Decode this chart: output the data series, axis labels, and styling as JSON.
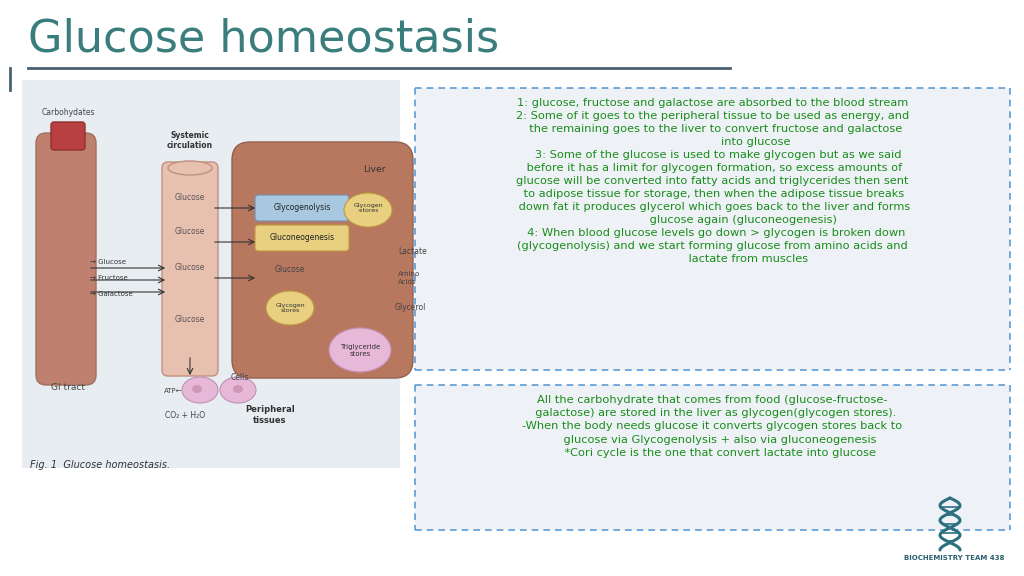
{
  "title": "Glucose homeostasis",
  "title_color": "#3a7d7d",
  "title_fontsize": 32,
  "divider_color": "#4a6070",
  "bg_color": "#ffffff",
  "box_text_color": "#1a8c1a",
  "box_border_color": "#5b9bd5",
  "box_bg_color": "#eef2f7",
  "logo_text": "BIOCHEMISTRY TEAM 438",
  "logo_color": "#2c5f6e",
  "fig_caption": "Fig. 1  Glucose homeostasis.",
  "box1_lines": [
    "1: glucose, fructose and galactose are absorbed to the blood stream",
    "2: Some of it goes to the peripheral tissue to be used as energy, and",
    "  the remaining goes to the liver to convert fructose and galactose",
    "                        into glucose",
    "   3: Some of the glucose is used to make glycogen but as we said",
    " before it has a limit for glycogen formation, so excess amounts of",
    "glucose will be converted into fatty acids and triglycerides then sent",
    " to adipose tissue for storage, then when the adipose tissue breaks",
    " down fat it produces glycerol which goes back to the liver and forms",
    "                 glucose again (gluconeogenesis)",
    "  4: When blood glucose levels go down > glycogen is broken down",
    "(glycogenolysis) and we start forming glucose from amino acids and",
    "                    lactate from muscles"
  ],
  "box2_lines": [
    "All the carbohydrate that comes from food (glucose-fructose-",
    "  galactose) are stored in the liver as glycogen(glycogen stores).",
    "-When the body needs glucose it converts glycogen stores back to",
    "    glucose via Glycogenolysis + also via gluconeogenesis",
    "    *Cori cycle is the one that convert lactate into glucose"
  ]
}
